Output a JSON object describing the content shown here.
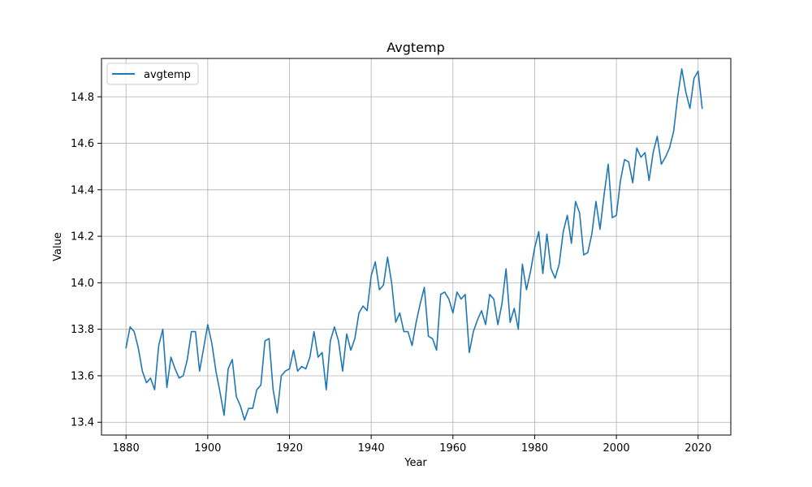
{
  "chart_data": {
    "type": "line",
    "title": "Avgtemp",
    "xlabel": "Year",
    "ylabel": "Value",
    "xlim": [
      1874,
      2028
    ],
    "ylim": [
      13.345,
      14.965
    ],
    "xticks": [
      1880,
      1900,
      1920,
      1940,
      1960,
      1980,
      2000,
      2020
    ],
    "yticks": [
      13.4,
      13.6,
      13.8,
      14.0,
      14.2,
      14.4,
      14.6,
      14.8
    ],
    "ytick_labels": [
      "13.4",
      "13.6",
      "13.8",
      "14.0",
      "14.2",
      "14.4",
      "14.6",
      "14.8"
    ],
    "grid": true,
    "legend": "top-left",
    "colors": {
      "line": "#1f77b4",
      "grid": "#b0b0b0",
      "axis": "#000000"
    },
    "series": [
      {
        "name": "avgtemp",
        "x": [
          1880,
          1881,
          1882,
          1883,
          1884,
          1885,
          1886,
          1887,
          1888,
          1889,
          1890,
          1891,
          1892,
          1893,
          1894,
          1895,
          1896,
          1897,
          1898,
          1899,
          1900,
          1901,
          1902,
          1903,
          1904,
          1905,
          1906,
          1907,
          1908,
          1909,
          1910,
          1911,
          1912,
          1913,
          1914,
          1915,
          1916,
          1917,
          1918,
          1919,
          1920,
          1921,
          1922,
          1923,
          1924,
          1925,
          1926,
          1927,
          1928,
          1929,
          1930,
          1931,
          1932,
          1933,
          1934,
          1935,
          1936,
          1937,
          1938,
          1939,
          1940,
          1941,
          1942,
          1943,
          1944,
          1945,
          1946,
          1947,
          1948,
          1949,
          1950,
          1951,
          1952,
          1953,
          1954,
          1955,
          1956,
          1957,
          1958,
          1959,
          1960,
          1961,
          1962,
          1963,
          1964,
          1965,
          1966,
          1967,
          1968,
          1969,
          1970,
          1971,
          1972,
          1973,
          1974,
          1975,
          1976,
          1977,
          1978,
          1979,
          1980,
          1981,
          1982,
          1983,
          1984,
          1985,
          1986,
          1987,
          1988,
          1989,
          1990,
          1991,
          1992,
          1993,
          1994,
          1995,
          1996,
          1997,
          1998,
          1999,
          2000,
          2001,
          2002,
          2003,
          2004,
          2005,
          2006,
          2007,
          2008,
          2009,
          2010,
          2011,
          2012,
          2013,
          2014,
          2015,
          2016,
          2017,
          2018,
          2019,
          2020,
          2021
        ],
        "values": [
          13.72,
          13.81,
          13.79,
          13.72,
          13.62,
          13.57,
          13.59,
          13.54,
          13.73,
          13.8,
          13.55,
          13.68,
          13.63,
          13.59,
          13.6,
          13.67,
          13.79,
          13.79,
          13.62,
          13.72,
          13.82,
          13.74,
          13.62,
          13.53,
          13.43,
          13.63,
          13.67,
          13.51,
          13.47,
          13.41,
          13.46,
          13.46,
          13.54,
          13.56,
          13.75,
          13.76,
          13.54,
          13.44,
          13.6,
          13.62,
          13.63,
          13.71,
          13.62,
          13.64,
          13.63,
          13.68,
          13.79,
          13.68,
          13.7,
          13.54,
          13.75,
          13.81,
          13.75,
          13.62,
          13.78,
          13.71,
          13.76,
          13.87,
          13.9,
          13.88,
          14.03,
          14.09,
          13.97,
          13.99,
          14.11,
          14.0,
          13.83,
          13.87,
          13.79,
          13.79,
          13.73,
          13.83,
          13.91,
          13.98,
          13.77,
          13.76,
          13.71,
          13.95,
          13.96,
          13.93,
          13.87,
          13.96,
          13.93,
          13.95,
          13.7,
          13.79,
          13.84,
          13.88,
          13.82,
          13.95,
          13.93,
          13.82,
          13.91,
          14.06,
          13.83,
          13.89,
          13.8,
          14.08,
          13.97,
          14.05,
          14.15,
          14.22,
          14.04,
          14.21,
          14.06,
          14.02,
          14.08,
          14.22,
          14.29,
          14.17,
          14.35,
          14.3,
          14.12,
          14.13,
          14.21,
          14.35,
          14.23,
          14.38,
          14.51,
          14.28,
          14.29,
          14.44,
          14.53,
          14.52,
          14.43,
          14.58,
          14.54,
          14.56,
          14.44,
          14.56,
          14.63,
          14.51,
          14.54,
          14.58,
          14.65,
          14.8,
          14.92,
          14.82,
          14.75,
          14.88,
          14.91,
          14.75
        ]
      }
    ]
  }
}
